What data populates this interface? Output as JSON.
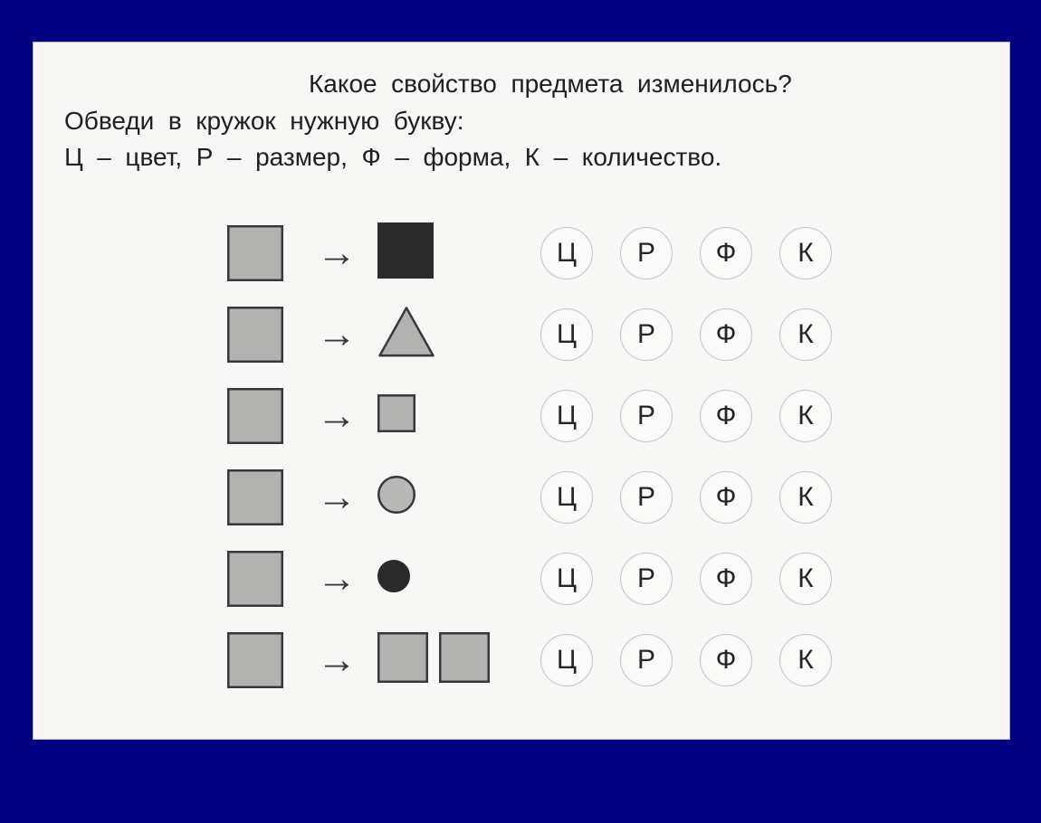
{
  "background_color": "#000080",
  "worksheet_bg": "#f7f7f5",
  "text": {
    "line1": "Какое  свойство  предмета  изменилось?",
    "line2": "Обведи  в  кружок  нужную  букву:",
    "line3": "Ц  –  цвет,  Р  –  размер,  Ф  –  форма,  К  –  количество."
  },
  "text_color": "#202020",
  "text_fontsize": 28,
  "option_letters": [
    "Ц",
    "Р",
    "Ф",
    "К"
  ],
  "option_circle": {
    "border_color": "#c5c5c5",
    "bg_color": "#fbfbf9",
    "size": 56,
    "text_color": "#252525",
    "fontsize": 30
  },
  "arrow_glyph": "→",
  "arrow_color": "#383838",
  "shape_gray_fill": "#b2b2b0",
  "shape_dark_fill": "#2a2a2a",
  "shape_stroke": "#383838",
  "rows": [
    {
      "left": {
        "shape": "square",
        "size": 62,
        "fill": "#b2b2b0",
        "stroke": "#383838"
      },
      "right": [
        {
          "shape": "square",
          "size": 62,
          "fill": "#2a2a2a",
          "stroke": "#2a2a2a"
        }
      ]
    },
    {
      "left": {
        "shape": "square",
        "size": 62,
        "fill": "#b2b2b0",
        "stroke": "#383838"
      },
      "right": [
        {
          "shape": "triangle",
          "size": 64,
          "fill": "#b2b2b0",
          "stroke": "#383838"
        }
      ]
    },
    {
      "left": {
        "shape": "square",
        "size": 62,
        "fill": "#b2b2b0",
        "stroke": "#383838"
      },
      "right": [
        {
          "shape": "square",
          "size": 42,
          "fill": "#b2b2b0",
          "stroke": "#383838"
        }
      ]
    },
    {
      "left": {
        "shape": "square",
        "size": 62,
        "fill": "#b2b2b0",
        "stroke": "#383838"
      },
      "right": [
        {
          "shape": "circle",
          "size": 42,
          "fill": "#b8b8b6",
          "stroke": "#383838"
        }
      ]
    },
    {
      "left": {
        "shape": "square",
        "size": 62,
        "fill": "#b2b2b0",
        "stroke": "#383838"
      },
      "right": [
        {
          "shape": "circle",
          "size": 36,
          "fill": "#2a2a2a",
          "stroke": "#2a2a2a"
        }
      ]
    },
    {
      "left": {
        "shape": "square",
        "size": 62,
        "fill": "#b2b2b0",
        "stroke": "#383838"
      },
      "right": [
        {
          "shape": "square",
          "size": 56,
          "fill": "#b2b2b0",
          "stroke": "#383838"
        },
        {
          "shape": "square",
          "size": 56,
          "fill": "#b2b2b0",
          "stroke": "#383838"
        }
      ]
    }
  ]
}
